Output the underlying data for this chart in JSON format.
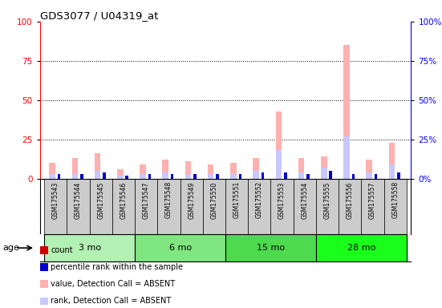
{
  "title": "GDS3077 / U04319_at",
  "samples": [
    "GSM175543",
    "GSM175544",
    "GSM175545",
    "GSM175546",
    "GSM175547",
    "GSM175548",
    "GSM175549",
    "GSM175550",
    "GSM175551",
    "GSM175552",
    "GSM175553",
    "GSM175554",
    "GSM175555",
    "GSM175556",
    "GSM175557",
    "GSM175558"
  ],
  "groups": [
    {
      "label": "3 mo",
      "color": "#b3f0b3",
      "start": 0,
      "end": 4
    },
    {
      "label": "6 mo",
      "color": "#80e680",
      "start": 4,
      "end": 8
    },
    {
      "label": "15 mo",
      "color": "#4ddb4d",
      "start": 8,
      "end": 12
    },
    {
      "label": "28 mo",
      "color": "#1aff1a",
      "start": 12,
      "end": 16
    }
  ],
  "value_absent": [
    10,
    13,
    16,
    6,
    9,
    12,
    11,
    9,
    10,
    13,
    43,
    13,
    14,
    85,
    12,
    23
  ],
  "rank_absent": [
    3,
    3,
    5,
    2,
    3,
    4,
    3,
    3,
    3,
    5,
    18,
    4,
    7,
    27,
    4,
    9
  ],
  "count": [
    1,
    1,
    1,
    1,
    1,
    1,
    1,
    1,
    1,
    1,
    1,
    1,
    1,
    1,
    1,
    1
  ],
  "percentile": [
    3,
    3,
    4,
    2,
    3,
    3,
    3,
    3,
    3,
    4,
    4,
    3,
    5,
    3,
    3,
    4
  ],
  "ylim_left": [
    0,
    100
  ],
  "ylim_right": [
    0,
    100
  ],
  "yticks": [
    0,
    25,
    50,
    75,
    100
  ],
  "color_value_absent": "#ffb0b0",
  "color_rank_absent": "#c8c8ff",
  "color_count": "#cc0000",
  "color_percentile": "#0000cc",
  "bg_plot": "#ffffff",
  "bg_sample": "#cccccc",
  "age_label": "age"
}
